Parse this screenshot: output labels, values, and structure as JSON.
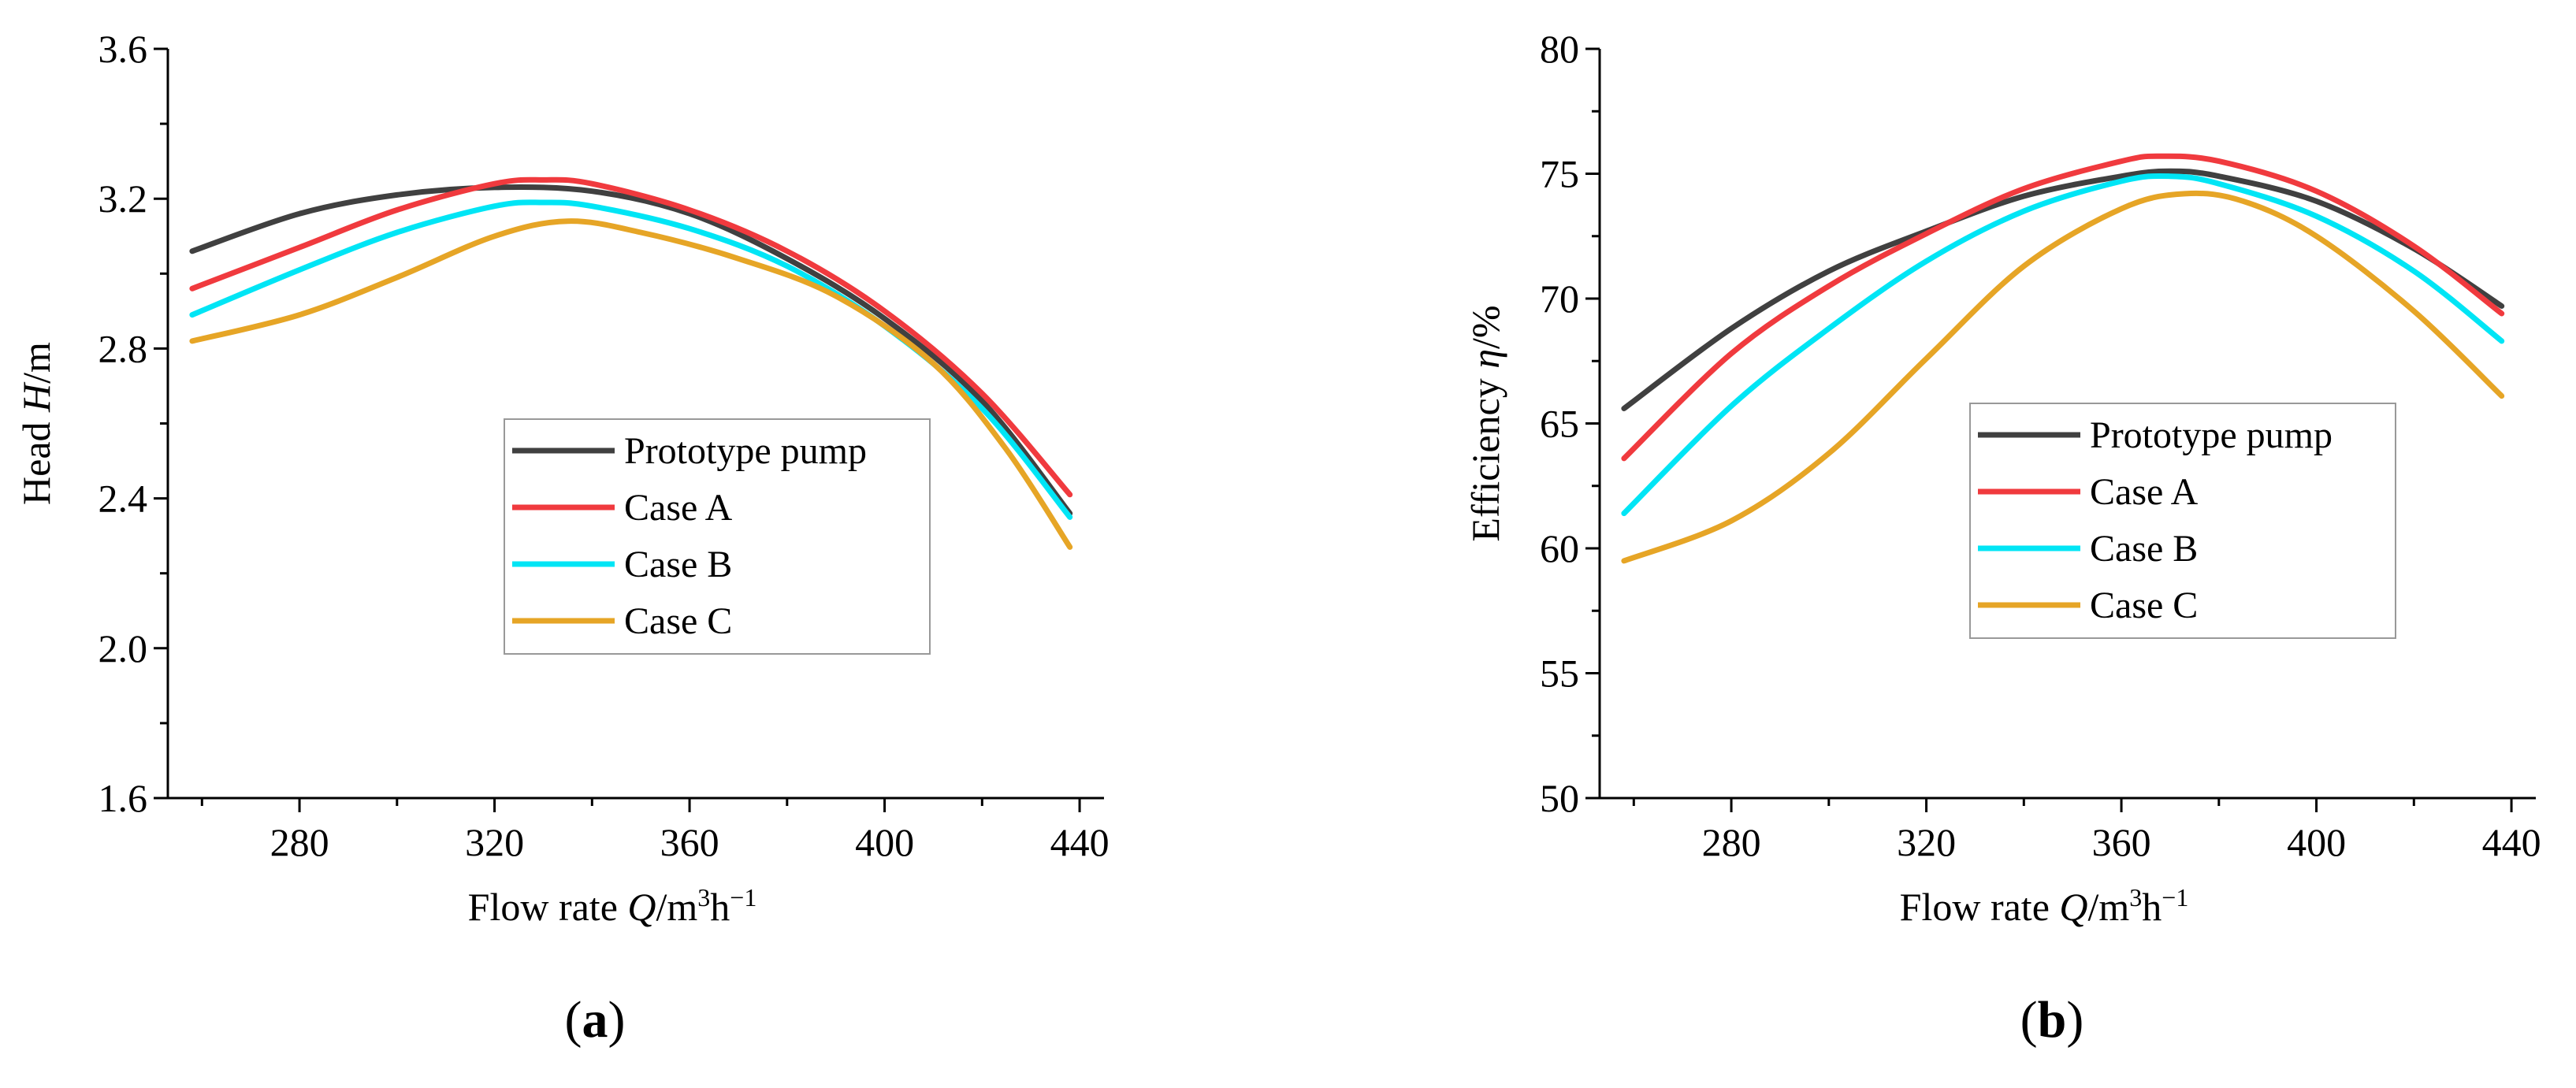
{
  "chart_data": [
    {
      "type": "line",
      "panel_label": "a",
      "xlabel_prefix": "Flow rate",
      "xlabel_var": "Q",
      "xlabel_unit_parts": [
        "/m",
        "3",
        "h",
        "−1"
      ],
      "ylabel_prefix": "Head",
      "ylabel_var": "H",
      "ylabel_unit": "/m",
      "xlim": [
        253,
        445
      ],
      "ylim": [
        1.6,
        3.6
      ],
      "xticks": [
        280,
        320,
        360,
        400,
        440
      ],
      "xtick_labels": [
        "280",
        "320",
        "360",
        "400",
        "440"
      ],
      "yticks": [
        1.6,
        2.0,
        2.4,
        2.8,
        3.2,
        3.6
      ],
      "ytick_labels": [
        "1.6",
        "2.0",
        "2.4",
        "2.8",
        "3.2",
        "3.6"
      ],
      "legend_position": "center-right",
      "series": [
        {
          "name": "Prototype pump",
          "color": "#404040",
          "x": [
            258,
            280,
            300,
            320,
            340,
            360,
            380,
            400,
            420,
            438
          ],
          "y": [
            3.06,
            3.16,
            3.21,
            3.23,
            3.22,
            3.16,
            3.04,
            2.88,
            2.66,
            2.36
          ]
        },
        {
          "name": "Case A",
          "color": "#f03a3e",
          "x": [
            258,
            280,
            300,
            320,
            330,
            340,
            360,
            380,
            400,
            420,
            438
          ],
          "y": [
            2.96,
            3.07,
            3.17,
            3.24,
            3.25,
            3.24,
            3.17,
            3.06,
            2.9,
            2.68,
            2.41
          ]
        },
        {
          "name": "Case B",
          "color": "#00e5f5",
          "x": [
            258,
            280,
            300,
            320,
            330,
            340,
            360,
            380,
            400,
            420,
            438
          ],
          "y": [
            2.89,
            3.01,
            3.11,
            3.18,
            3.19,
            3.18,
            3.12,
            3.02,
            2.86,
            2.64,
            2.35
          ]
        },
        {
          "name": "Case C",
          "color": "#e6a526",
          "x": [
            258,
            280,
            300,
            320,
            335,
            350,
            370,
            390,
            410,
            425,
            438
          ],
          "y": [
            2.82,
            2.89,
            2.99,
            3.1,
            3.14,
            3.11,
            3.04,
            2.94,
            2.76,
            2.53,
            2.27
          ]
        }
      ]
    },
    {
      "type": "line",
      "panel_label": "b",
      "xlabel_prefix": "Flow rate",
      "xlabel_var": "Q",
      "xlabel_unit_parts": [
        "/m",
        "3",
        "h",
        "−1"
      ],
      "ylabel_prefix": "Efficiency",
      "ylabel_var": "η",
      "ylabel_unit": "/%",
      "xlim": [
        253,
        445
      ],
      "ylim": [
        50,
        80
      ],
      "xticks": [
        280,
        320,
        360,
        400,
        440
      ],
      "xtick_labels": [
        "280",
        "320",
        "360",
        "400",
        "440"
      ],
      "yticks": [
        50,
        55,
        60,
        65,
        70,
        75,
        80
      ],
      "ytick_labels": [
        "50",
        "55",
        "60",
        "65",
        "70",
        "75",
        "80"
      ],
      "legend_position": "center-right",
      "series": [
        {
          "name": "Prototype pump",
          "color": "#404040",
          "x": [
            258,
            280,
            300,
            320,
            340,
            360,
            370,
            380,
            400,
            420,
            438
          ],
          "y": [
            65.6,
            68.8,
            71.1,
            72.7,
            74.1,
            74.9,
            75.1,
            74.9,
            73.9,
            72.0,
            69.7
          ]
        },
        {
          "name": "Case A",
          "color": "#f03a3e",
          "x": [
            258,
            280,
            300,
            320,
            340,
            360,
            368,
            380,
            400,
            420,
            438
          ],
          "y": [
            63.6,
            67.8,
            70.5,
            72.6,
            74.4,
            75.5,
            75.7,
            75.5,
            74.3,
            72.1,
            69.4
          ]
        },
        {
          "name": "Case B",
          "color": "#00e5f5",
          "x": [
            258,
            280,
            300,
            320,
            340,
            360,
            370,
            380,
            400,
            420,
            438
          ],
          "y": [
            61.4,
            65.7,
            68.8,
            71.5,
            73.5,
            74.7,
            74.9,
            74.6,
            73.3,
            71.1,
            68.3
          ]
        },
        {
          "name": "Case C",
          "color": "#e6a526",
          "x": [
            258,
            280,
            300,
            320,
            340,
            360,
            373,
            385,
            400,
            420,
            438
          ],
          "y": [
            59.5,
            61.1,
            63.8,
            67.6,
            71.3,
            73.6,
            74.2,
            73.9,
            72.5,
            69.5,
            66.1
          ]
        }
      ]
    }
  ]
}
